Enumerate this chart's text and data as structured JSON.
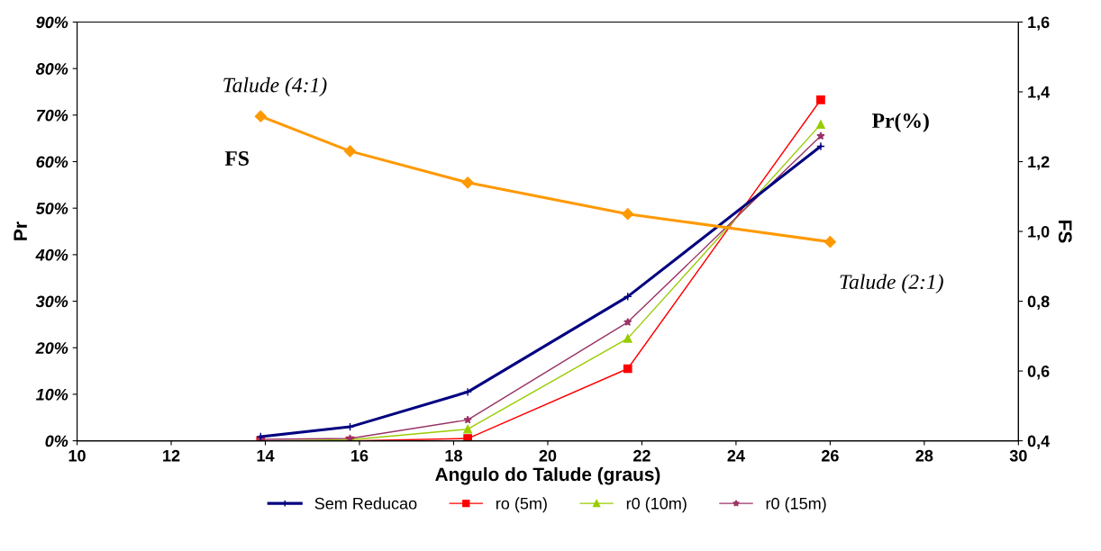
{
  "chart_data": {
    "type": "line",
    "xlabel": "Angulo do Talude (graus)",
    "ylabel": "Pr",
    "y2label": "FS",
    "xlim": [
      10,
      30
    ],
    "xticks": [
      10,
      12,
      14,
      16,
      18,
      20,
      22,
      24,
      26,
      28,
      30
    ],
    "ylim": [
      0,
      0.9
    ],
    "yticks": [
      {
        "value": 0,
        "label": "0%"
      },
      {
        "value": 0.1,
        "label": "10%"
      },
      {
        "value": 0.2,
        "label": "20%"
      },
      {
        "value": 0.3,
        "label": "30%"
      },
      {
        "value": 0.4,
        "label": "40%"
      },
      {
        "value": 0.5,
        "label": "50%"
      },
      {
        "value": 0.6,
        "label": "60%"
      },
      {
        "value": 0.7,
        "label": "70%"
      },
      {
        "value": 0.8,
        "label": "80%"
      },
      {
        "value": 0.9,
        "label": "90%"
      }
    ],
    "y2lim": [
      0.4,
      1.6
    ],
    "y2ticks": [
      {
        "value": 0.4,
        "label": "0,4"
      },
      {
        "value": 0.6,
        "label": "0,6"
      },
      {
        "value": 0.8,
        "label": "0,8"
      },
      {
        "value": 1.0,
        "label": "1,0"
      },
      {
        "value": 1.2,
        "label": "1,2"
      },
      {
        "value": 1.4,
        "label": "1,4"
      },
      {
        "value": 1.6,
        "label": "1,6"
      }
    ],
    "grid": false,
    "legend": "bottom",
    "series": [
      {
        "name": "Sem Reducao",
        "color": "#000080",
        "marker": "cross",
        "x": [
          13.9,
          15.8,
          18.3,
          21.7,
          25.8
        ],
        "values": [
          0.009,
          0.03,
          0.105,
          0.31,
          0.633
        ]
      },
      {
        "name": "ro (5m)",
        "color": "#ff0000",
        "marker": "square",
        "x": [
          13.9,
          15.8,
          18.3,
          21.7,
          25.8
        ],
        "values": [
          0.0,
          0.0,
          0.005,
          0.155,
          0.733
        ]
      },
      {
        "name": "r0 (10m)",
        "color": "#99cc00",
        "marker": "triangle",
        "x": [
          13.9,
          15.8,
          18.3,
          21.7,
          25.8
        ],
        "values": [
          0.0,
          0.002,
          0.025,
          0.22,
          0.68
        ]
      },
      {
        "name": "r0 (15m)",
        "color": "#993366",
        "marker": "star",
        "x": [
          13.9,
          15.8,
          18.3,
          21.7,
          25.8
        ],
        "values": [
          0.003,
          0.005,
          0.045,
          0.255,
          0.655
        ]
      },
      {
        "color": "#ff9900",
        "marker": "diamond",
        "axis": "y2",
        "x": [
          13.9,
          15.8,
          18.3,
          21.7,
          26.0
        ],
        "values": [
          1.33,
          1.23,
          1.14,
          1.05,
          0.97
        ]
      }
    ],
    "annotations": [
      "Talude (4:1)",
      "FS",
      "Pr(%)",
      "Talude (2:1)"
    ]
  }
}
